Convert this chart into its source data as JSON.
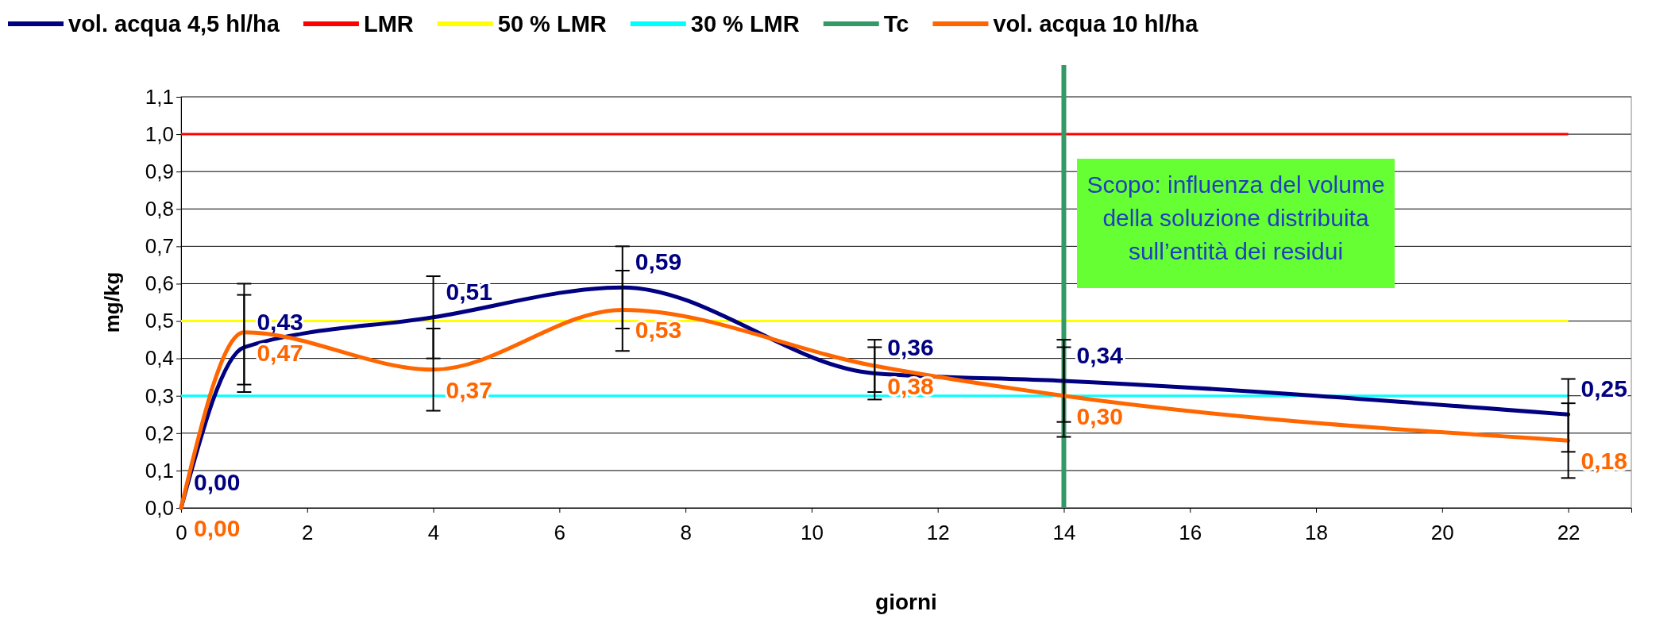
{
  "chart_data": {
    "type": "line",
    "xlabel": "giorni",
    "ylabel": "mg/kg",
    "x": [
      0,
      1,
      4,
      7,
      11,
      14,
      22
    ],
    "series": [
      {
        "name": "vol. acqua 4,5 hl/ha",
        "color": "#000080",
        "values": [
          0,
          0.43,
          0.51,
          0.59,
          0.36,
          0.34,
          0.25
        ],
        "errors": [
          null,
          [
            0.31,
            0.57
          ],
          [
            0.4,
            0.62
          ],
          [
            0.48,
            0.7
          ],
          [
            0.29,
            0.43
          ],
          [
            0.23,
            0.45
          ],
          [
            0.15,
            0.345
          ]
        ],
        "value_labels": [
          "0,00",
          "0,43",
          "0,51",
          "0,59",
          "0,36",
          "0,34",
          "0,25"
        ]
      },
      {
        "name": "vol. acqua 10 hl/ha",
        "color": "#ff6600",
        "values": [
          0,
          0.47,
          0.37,
          0.53,
          0.38,
          0.3,
          0.18
        ],
        "errors": [
          null,
          [
            0.33,
            0.6
          ],
          [
            0.26,
            0.48
          ],
          [
            0.42,
            0.635
          ],
          [
            0.31,
            0.45
          ],
          [
            0.19,
            0.43
          ],
          [
            0.08,
            0.28
          ]
        ],
        "value_labels": [
          "0,00",
          "0,47",
          "0,37",
          "0,53",
          "0,38",
          "0,30",
          "0,18"
        ]
      }
    ],
    "ref_lines": [
      {
        "axis": "y",
        "value": 1.0,
        "label": "LMR",
        "color": "#ff0000"
      },
      {
        "axis": "y",
        "value": 0.5,
        "label": "50 % LMR",
        "color": "#ffff00"
      },
      {
        "axis": "y",
        "value": 0.3,
        "label": "30 % LMR",
        "color": "#00ffff"
      },
      {
        "axis": "x",
        "value": 14,
        "label": "Tc",
        "color": "#339966"
      }
    ],
    "annotations": [
      "Scopo: influenza del volume della soluzione distribuita sull’entità dei residui"
    ],
    "xlim": [
      0,
      23
    ],
    "xticks": [
      0,
      2,
      4,
      6,
      8,
      10,
      12,
      14,
      16,
      18,
      20,
      22
    ],
    "ylim": [
      0,
      1.1
    ],
    "yticks": [
      {
        "value": 0,
        "label": "0,0"
      },
      {
        "value": 0.1,
        "label": "0,1"
      },
      {
        "value": 0.2,
        "label": "0,2"
      },
      {
        "value": 0.3,
        "label": "0,3"
      },
      {
        "value": 0.4,
        "label": "0,4"
      },
      {
        "value": 0.5,
        "label": "0,5"
      },
      {
        "value": 0.6,
        "label": "0,6"
      },
      {
        "value": 0.7,
        "label": "0,7"
      },
      {
        "value": 0.8,
        "label": "0,8"
      },
      {
        "value": 0.9,
        "label": "0,9"
      },
      {
        "value": 1.0,
        "label": "1,0"
      },
      {
        "value": 1.1,
        "label": "1,1"
      }
    ],
    "grid": "y",
    "legend": "top",
    "line_style": "solid"
  }
}
